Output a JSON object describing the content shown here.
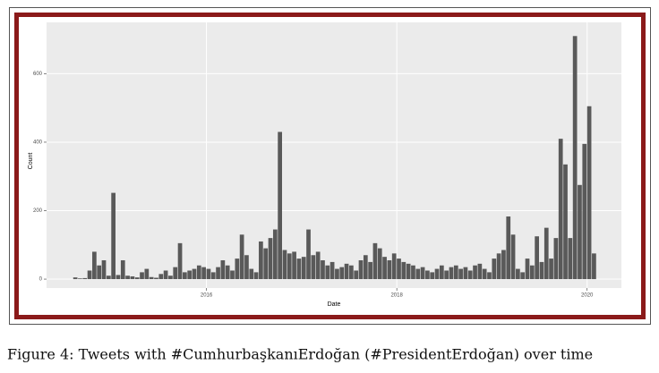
{
  "chart_data": {
    "type": "histogram",
    "x_label": "Date",
    "y_label": "Count",
    "caption": "Figure 4: Tweets with #CumhurbaşkanıErdoğan (#PresidentErdoğan) over time",
    "bins": [
      2014.6,
      2014.65,
      2014.7,
      2014.75,
      2014.8,
      2014.85,
      2014.9,
      2014.95,
      2015,
      2015.05,
      2015.1,
      2015.15,
      2015.2,
      2015.25,
      2015.3,
      2015.35,
      2015.4,
      2015.45,
      2015.5,
      2015.55,
      2015.6,
      2015.65,
      2015.7,
      2015.75,
      2015.8,
      2015.85,
      2015.9,
      2015.95,
      2016,
      2016.05,
      2016.1,
      2016.15,
      2016.2,
      2016.25,
      2016.3,
      2016.35,
      2016.4,
      2016.45,
      2016.5,
      2016.55,
      2016.6,
      2016.65,
      2016.7,
      2016.75,
      2016.8,
      2016.85,
      2016.9,
      2016.95,
      2017,
      2017.05,
      2017.1,
      2017.15,
      2017.2,
      2017.25,
      2017.3,
      2017.35,
      2017.4,
      2017.45,
      2017.5,
      2017.55,
      2017.6,
      2017.65,
      2017.7,
      2017.75,
      2017.8,
      2017.85,
      2017.9,
      2017.95,
      2018,
      2018.05,
      2018.1,
      2018.15,
      2018.2,
      2018.25,
      2018.3,
      2018.35,
      2018.4,
      2018.45,
      2018.5,
      2018.55,
      2018.6,
      2018.65,
      2018.7,
      2018.75,
      2018.8,
      2018.85,
      2018.9,
      2018.95,
      2019,
      2019.05,
      2019.1,
      2019.15,
      2019.2,
      2019.25,
      2019.3,
      2019.35,
      2019.4,
      2019.45,
      2019.5,
      2019.55,
      2019.6,
      2019.65,
      2019.7,
      2019.75,
      2019.8,
      2019.85,
      2019.9,
      2019.95,
      2020,
      2020.05,
      2020.1
    ],
    "counts": [
      5,
      2,
      3,
      25,
      80,
      40,
      55,
      10,
      252,
      12,
      55,
      10,
      8,
      5,
      20,
      30,
      6,
      4,
      15,
      25,
      10,
      35,
      105,
      20,
      25,
      30,
      40,
      35,
      30,
      20,
      35,
      55,
      40,
      25,
      60,
      130,
      70,
      30,
      20,
      110,
      90,
      120,
      145,
      430,
      85,
      75,
      80,
      60,
      65,
      145,
      70,
      80,
      55,
      40,
      50,
      30,
      35,
      45,
      40,
      25,
      55,
      70,
      50,
      105,
      90,
      65,
      55,
      75,
      60,
      50,
      45,
      40,
      30,
      35,
      25,
      20,
      30,
      40,
      25,
      35,
      40,
      30,
      35,
      25,
      40,
      45,
      30,
      20,
      60,
      75,
      85,
      183,
      130,
      30,
      20,
      60,
      40,
      125,
      50,
      150,
      60,
      120,
      410,
      335,
      120,
      710,
      275,
      395,
      505,
      75
    ],
    "color": "#595959",
    "xlim": [
      2014.32,
      2020.36
    ],
    "xticks": [
      2016,
      2018,
      2020
    ],
    "ylim": [
      -26,
      750
    ],
    "yticks": [
      0,
      200,
      400,
      600
    ],
    "grid": true
  }
}
